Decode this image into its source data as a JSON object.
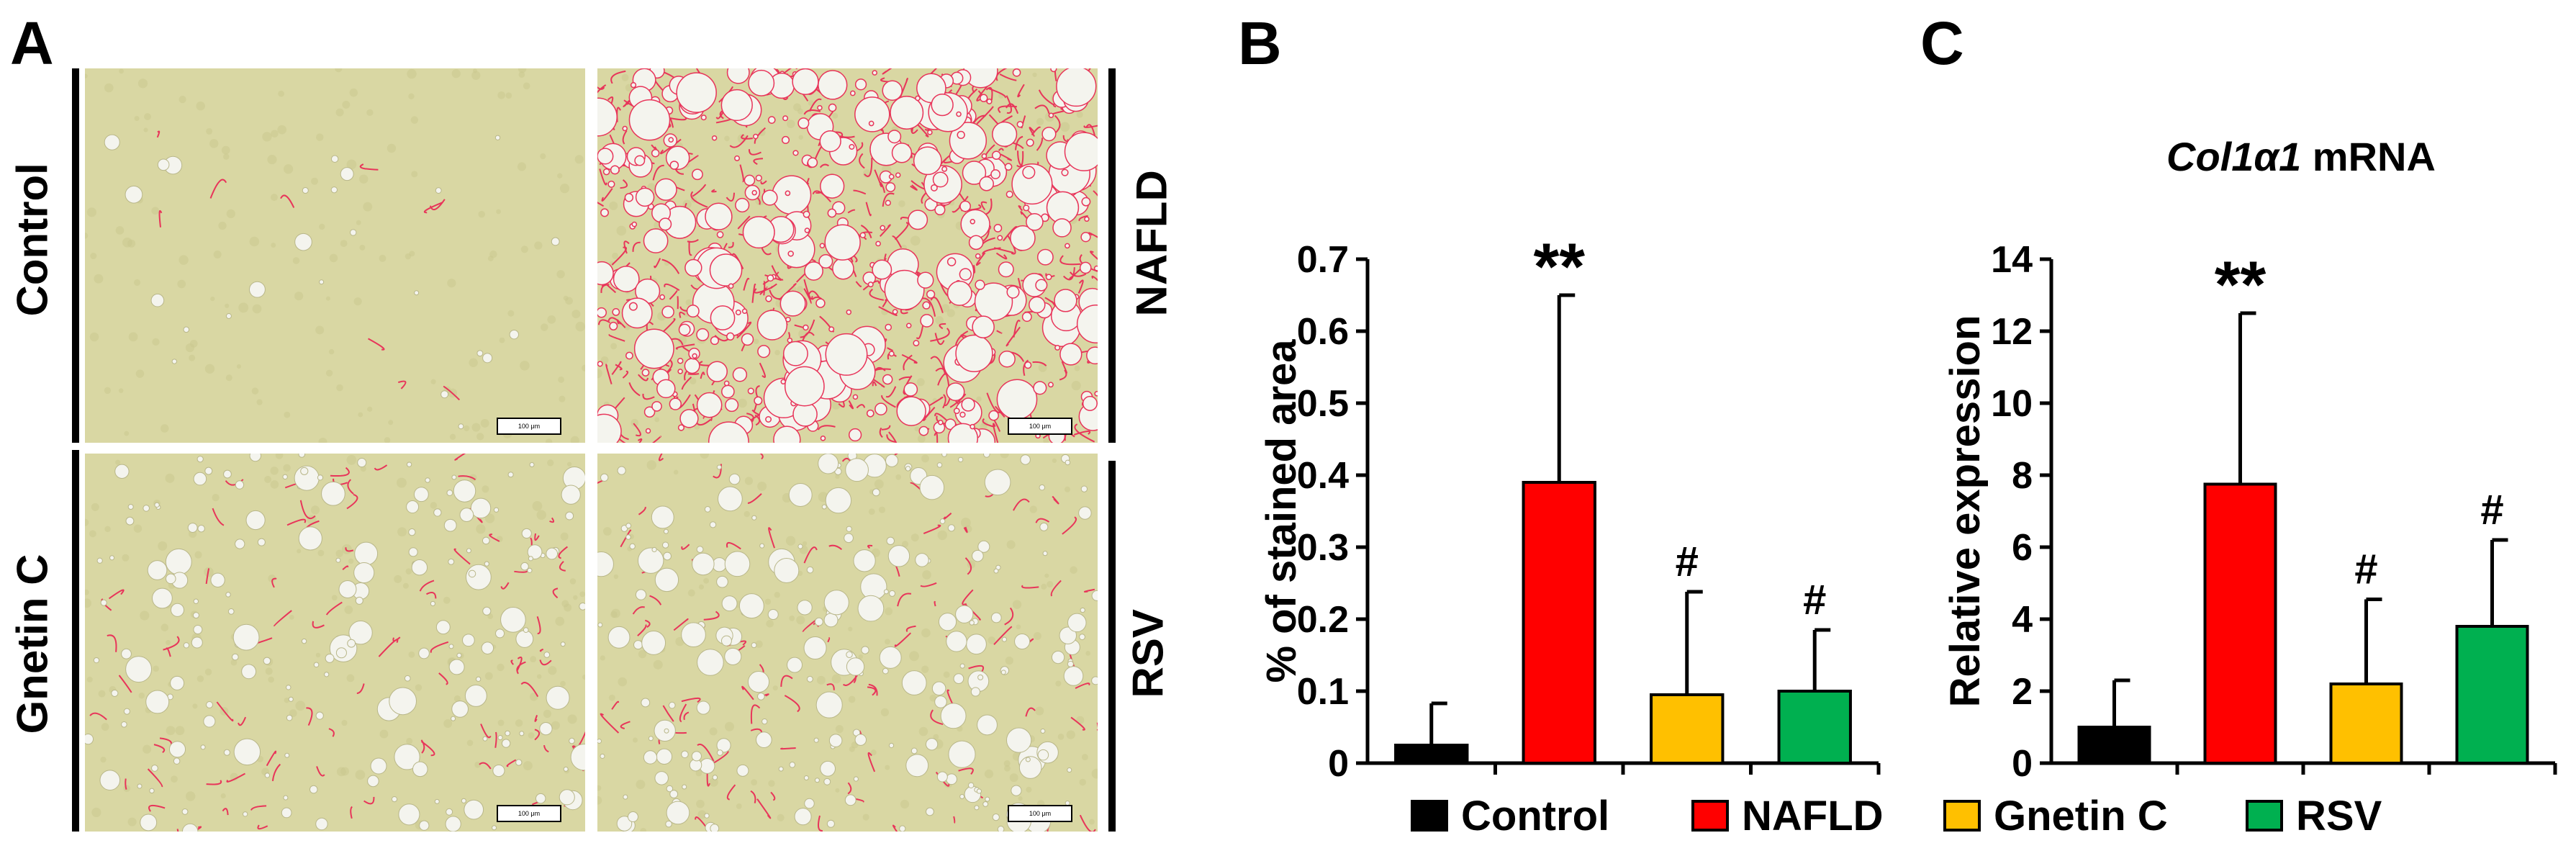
{
  "panels": {
    "a": {
      "letter": "A",
      "row_labels": [
        "Control",
        "Gnetin C"
      ],
      "right_labels": [
        "NAFLD",
        "RSV"
      ],
      "scale_bar_text": "100 μm"
    },
    "b": {
      "letter": "B"
    },
    "c": {
      "letter": "C",
      "title_italic": "Col1α1",
      "title_rest": " mRNA"
    }
  },
  "colors": {
    "control": "#000000",
    "nafld": "#ff0000",
    "gnetin_c": "#ffc000",
    "rsv": "#00b050",
    "tissue": "#d9d7a3",
    "stain": "#e8355a"
  },
  "legend": [
    {
      "label": "Control",
      "color": "#000000"
    },
    {
      "label": "NAFLD",
      "color": "#ff0000"
    },
    {
      "label": "Gnetin C",
      "color": "#ffc000"
    },
    {
      "label": "RSV",
      "color": "#00b050"
    }
  ],
  "chart_data": [
    {
      "type": "bar",
      "panel": "B",
      "title": "",
      "xlabel": "",
      "ylabel": "% of stained area",
      "ylim": [
        0,
        0.7
      ],
      "yticks": [
        "0",
        "0.1",
        "0.2",
        "0.3",
        "0.4",
        "0.5",
        "0.6",
        "0.7"
      ],
      "ytick_values": [
        0,
        0.1,
        0.2,
        0.3,
        0.4,
        0.5,
        0.6,
        0.7
      ],
      "categories": [
        "Control",
        "NAFLD",
        "Gnetin C",
        "RSV"
      ],
      "values": [
        0.025,
        0.39,
        0.095,
        0.1
      ],
      "errors": [
        0.058,
        0.26,
        0.143,
        0.085
      ],
      "annotations": [
        "",
        "**",
        "#",
        "#"
      ]
    },
    {
      "type": "bar",
      "panel": "C",
      "title": "Col1α1 mRNA",
      "xlabel": "",
      "ylabel": "Relative expression",
      "ylim": [
        0,
        14
      ],
      "yticks": [
        "0",
        "2",
        "4",
        "6",
        "8",
        "10",
        "12",
        "14"
      ],
      "ytick_values": [
        0,
        2,
        4,
        6,
        8,
        10,
        12,
        14
      ],
      "categories": [
        "Control",
        "NAFLD",
        "Gnetin C",
        "RSV"
      ],
      "values": [
        1.0,
        7.75,
        2.2,
        3.8
      ],
      "errors": [
        1.3,
        4.75,
        2.35,
        2.4
      ],
      "annotations": [
        "",
        "**",
        "#",
        "#"
      ]
    }
  ]
}
